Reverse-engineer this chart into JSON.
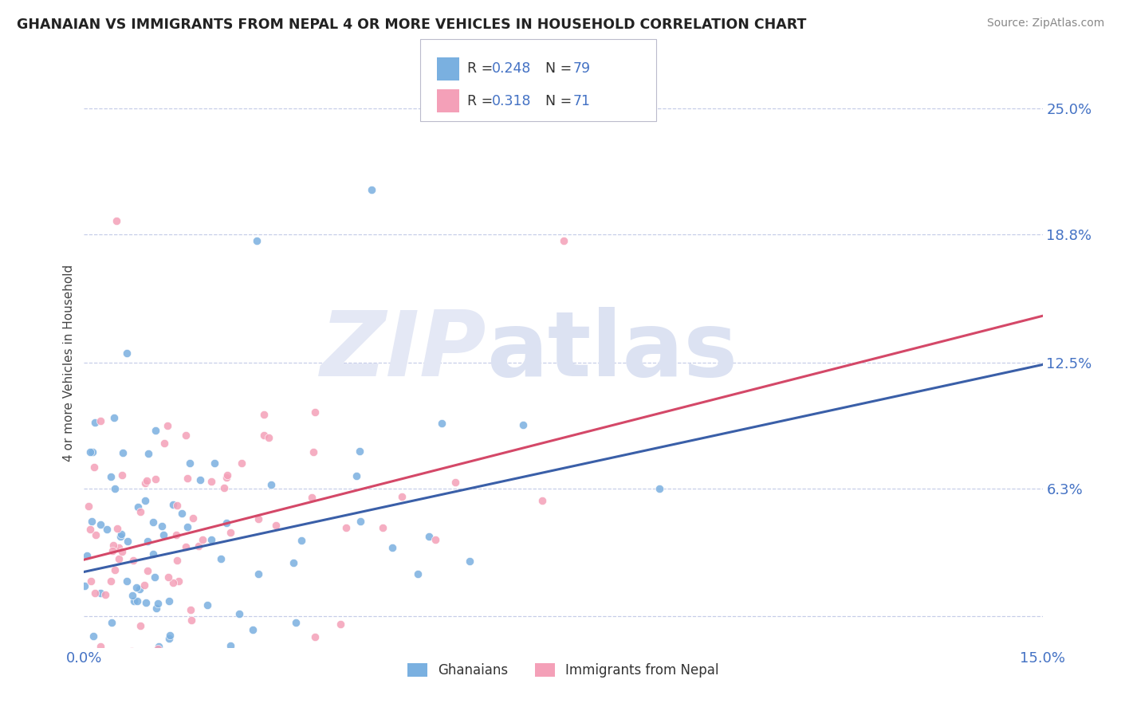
{
  "title": "GHANAIAN VS IMMIGRANTS FROM NEPAL 4 OR MORE VEHICLES IN HOUSEHOLD CORRELATION CHART",
  "source": "Source: ZipAtlas.com",
  "ylabel": "4 or more Vehicles in Household",
  "x_min": 0.0,
  "x_max": 0.15,
  "y_min": -0.015,
  "y_max": 0.265,
  "y_ticks": [
    0.0,
    0.063,
    0.125,
    0.188,
    0.25
  ],
  "y_tick_labels": [
    "",
    "6.3%",
    "12.5%",
    "18.8%",
    "25.0%"
  ],
  "x_tick_labels": [
    "0.0%",
    "15.0%"
  ],
  "color_blue": "#7ab0e0",
  "color_pink": "#f4a0b8",
  "trend_blue": "#3a5fa8",
  "trend_pink": "#d44868",
  "R_blue": 0.248,
  "N_blue": 79,
  "R_pink": 0.318,
  "N_pink": 71,
  "legend_label1": "Ghanaians",
  "legend_label2": "Immigrants from Nepal",
  "tick_color": "#4472c4",
  "title_color": "#222222",
  "source_color": "#888888",
  "blue_trend_start_y": 0.022,
  "blue_trend_end_y": 0.124,
  "pink_trend_start_y": 0.028,
  "pink_trend_end_y": 0.148
}
